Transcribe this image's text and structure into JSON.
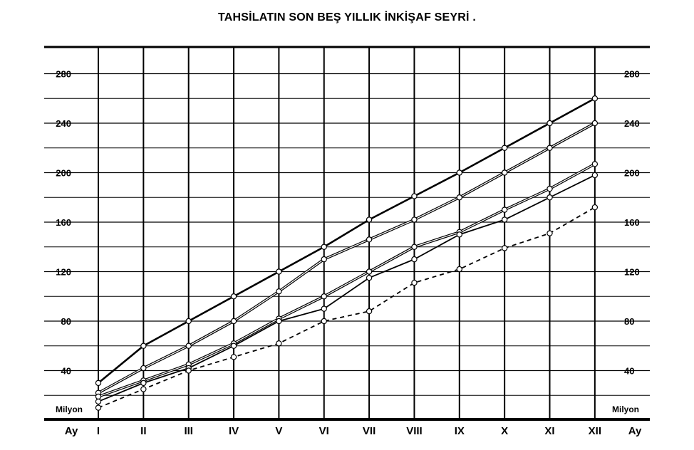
{
  "chart_data": {
    "type": "line",
    "title": "TAHSİLATIN SON BEŞ YILLIK İNKİŞAF SEYRİ  .",
    "xlabel": "Ay",
    "ylabel": "Milyon",
    "categories": [
      "I",
      "II",
      "III",
      "IV",
      "V",
      "VI",
      "VII",
      "VIII",
      "IX",
      "X",
      "XI",
      "XII"
    ],
    "yticks": [
      40,
      80,
      120,
      160,
      200,
      240,
      280
    ],
    "ylim": [
      0,
      300
    ],
    "grid": true,
    "legend": "none",
    "series": [
      {
        "values": [
          30,
          60,
          80,
          100,
          120,
          140,
          162,
          181,
          200,
          220,
          240,
          260
        ],
        "style": "solid-thick",
        "color": "#000000"
      },
      {
        "values": [
          22,
          42,
          60,
          80,
          104,
          130,
          146,
          162,
          180,
          200,
          220,
          240
        ],
        "style": "double",
        "color": "#000000"
      },
      {
        "values": [
          19,
          32,
          45,
          62,
          82,
          100,
          120,
          140,
          152,
          170,
          187,
          207
        ],
        "style": "double",
        "color": "#000000"
      },
      {
        "values": [
          15,
          30,
          42,
          60,
          80,
          90,
          115,
          130,
          150,
          162,
          180,
          198
        ],
        "style": "solid",
        "color": "#000000"
      },
      {
        "values": [
          10,
          25,
          40,
          51,
          62,
          80,
          88,
          111,
          122,
          139,
          151,
          172
        ],
        "style": "dashed",
        "color": "#000000"
      }
    ]
  }
}
